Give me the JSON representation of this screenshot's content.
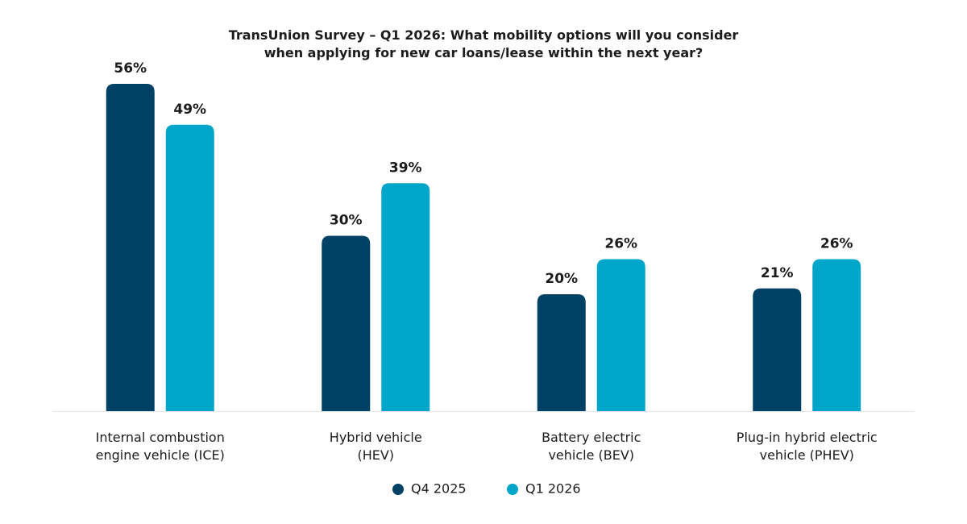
{
  "chart_data": {
    "type": "bar",
    "title": "TransUnion Survey – Q1 2026: What mobility options will you consider\nwhen applying for new car loans/lease within the next year?",
    "categories": [
      "Internal combustion\nengine vehicle (ICE)",
      "Hybrid vehicle\n(HEV)",
      "Battery electric\nvehicle (BEV)",
      "Plug-in hybrid electric\nvehicle (PHEV)"
    ],
    "series": [
      {
        "name": "Q4 2025",
        "color": "#004165",
        "values": [
          56,
          30,
          20,
          21
        ],
        "value_labels": [
          "56%",
          "30%",
          "20%",
          "21%"
        ]
      },
      {
        "name": "Q1 2026",
        "color": "#00a6ca",
        "values": [
          49,
          39,
          26,
          26
        ],
        "value_labels": [
          "49%",
          "39%",
          "26%",
          "26%"
        ]
      }
    ],
    "legend": "bottom"
  }
}
